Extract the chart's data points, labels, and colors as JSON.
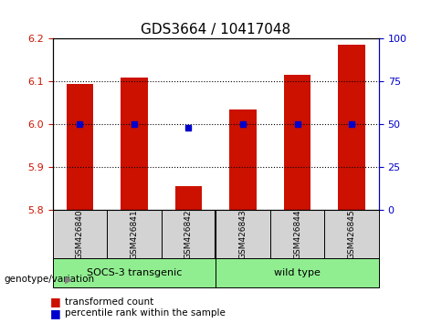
{
  "title": "GDS3664 / 10417048",
  "categories": [
    "GSM426840",
    "GSM426841",
    "GSM426842",
    "GSM426843",
    "GSM426844",
    "GSM426845"
  ],
  "red_values": [
    6.095,
    6.11,
    5.855,
    6.035,
    6.115,
    6.185
  ],
  "blue_values": [
    50,
    50,
    48,
    50,
    50,
    50
  ],
  "ylim_left": [
    5.8,
    6.2
  ],
  "ylim_right": [
    0,
    100
  ],
  "yticks_left": [
    5.8,
    5.9,
    6.0,
    6.1,
    6.2
  ],
  "yticks_right": [
    0,
    25,
    50,
    75,
    100
  ],
  "groups": [
    {
      "label": "SOCS-3 transgenic",
      "indices": [
        0,
        1,
        2
      ],
      "color": "#90EE90"
    },
    {
      "label": "wild type",
      "indices": [
        3,
        4,
        5
      ],
      "color": "#90EE90"
    }
  ],
  "group_boundary": 2.5,
  "bar_color": "#CC1100",
  "dot_color": "#0000CC",
  "background_plot": "#ffffff",
  "background_label": "#d3d3d3",
  "grid_color": "#000000",
  "legend_red_label": "transformed count",
  "legend_blue_label": "percentile rank within the sample",
  "genotype_label": "genotype/variation",
  "bar_width": 0.5,
  "base_value": 5.8
}
